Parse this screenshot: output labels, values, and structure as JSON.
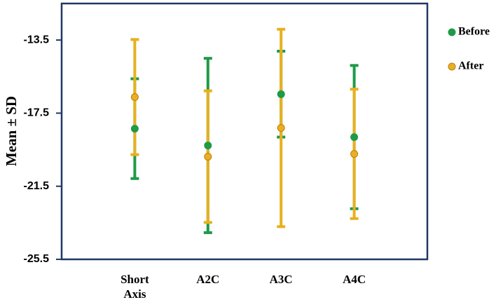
{
  "chart_data": {
    "type": "errorbar",
    "ylabel": "Mean ± SD",
    "categories": [
      "Short Axis",
      "A2C",
      "A3C",
      "A4C"
    ],
    "ylim": [
      -25.5,
      -11.5
    ],
    "yticks": [
      -13.5,
      -17.5,
      -21.5,
      -25.5
    ],
    "grid": false,
    "legend": "right",
    "series": [
      {
        "name": "Before",
        "color": "#1f9a48",
        "values": [
          -18.35,
          -19.27,
          -16.46,
          -18.81
        ],
        "errors": [
          2.73,
          4.77,
          2.35,
          3.92
        ]
      },
      {
        "name": "After",
        "color": "#e8b020",
        "values": [
          -16.62,
          -19.88,
          -18.31,
          -19.73
        ],
        "errors": [
          3.15,
          3.6,
          5.4,
          3.54
        ]
      }
    ]
  }
}
